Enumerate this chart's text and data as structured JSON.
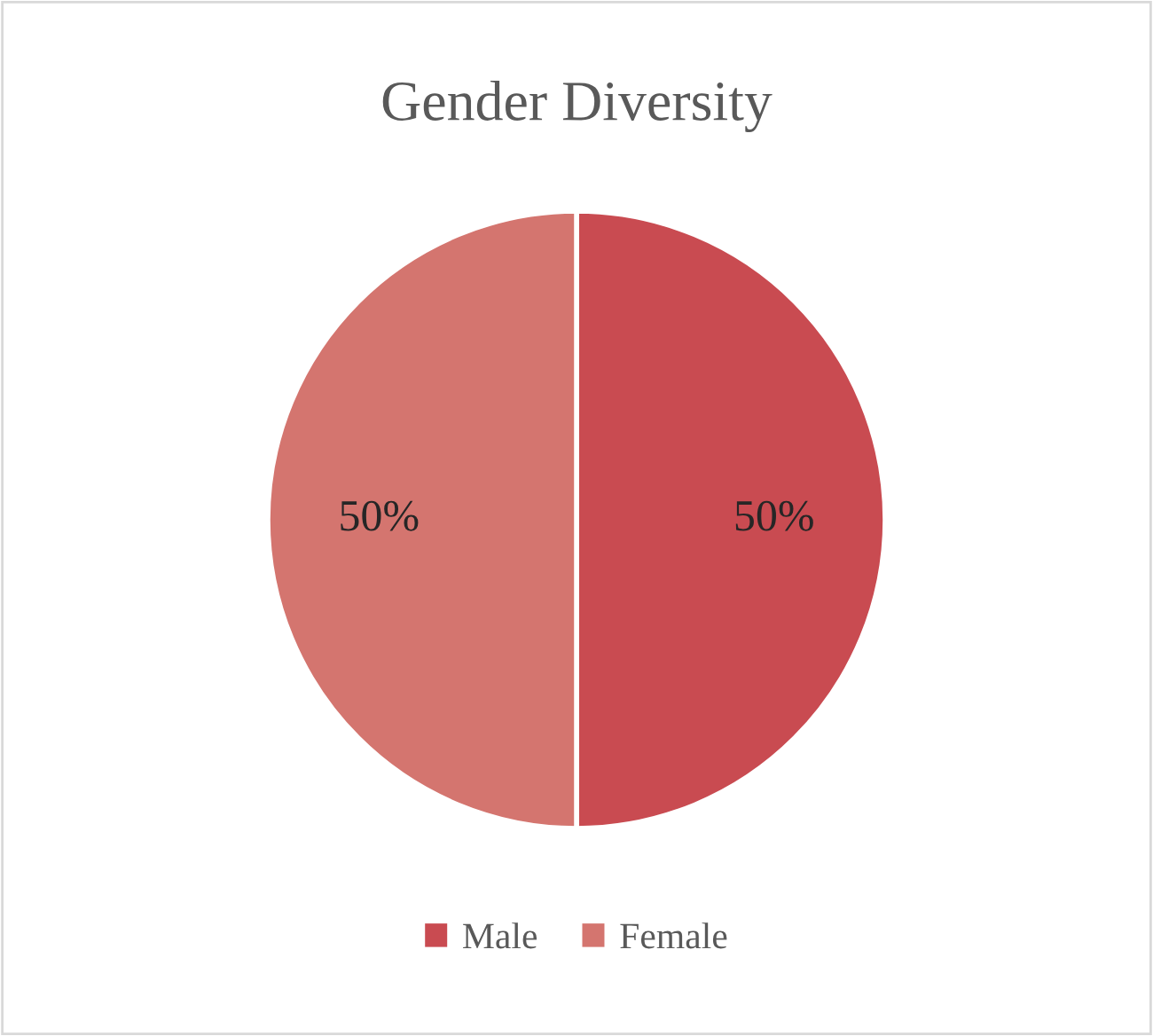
{
  "chart_data": {
    "type": "pie",
    "title": "Gender Diversity",
    "categories": [
      "Male",
      "Female"
    ],
    "values": [
      50,
      50
    ],
    "colors": [
      "#c94b51",
      "#d4756f"
    ],
    "value_labels": [
      "50%",
      "50%"
    ],
    "legend": "bottom"
  }
}
